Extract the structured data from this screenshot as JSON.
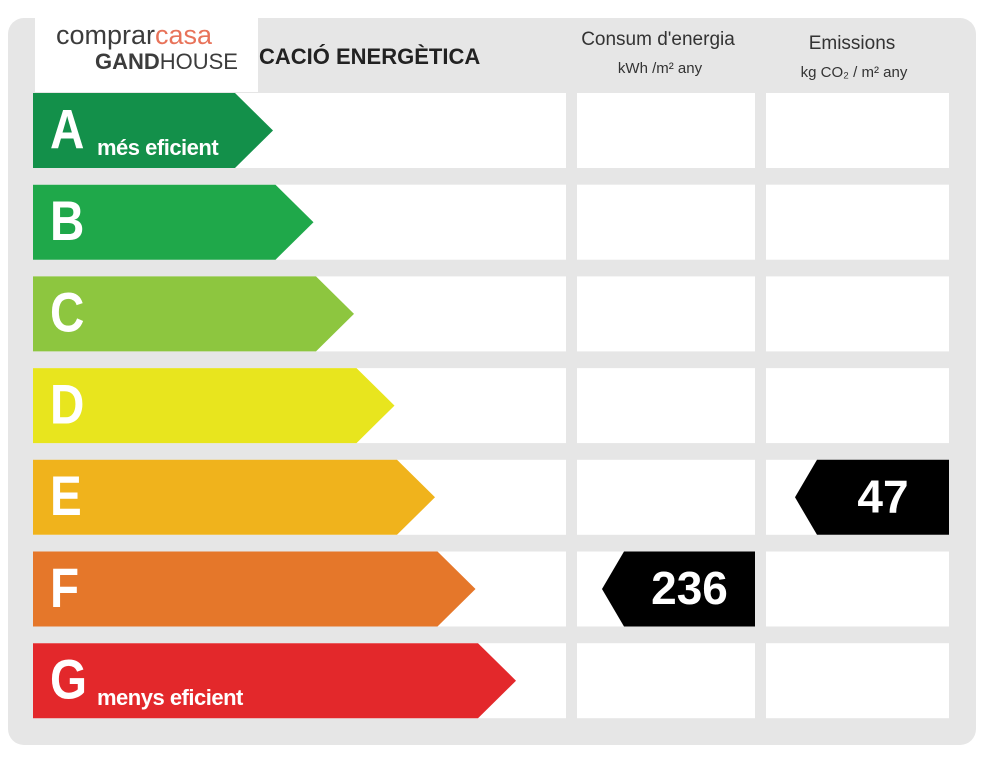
{
  "logo": {
    "comprar": "comprar",
    "casa": "casa",
    "gand": "GAND",
    "house": "HOUSE"
  },
  "title": "CACIÓ ENERGÈTICA",
  "columns": {
    "consumption": {
      "title": "Consum d'energia",
      "unit": "kWh /m²  any"
    },
    "emissions": {
      "title": "Emissions",
      "unit": "kg CO₂  / m²  any"
    }
  },
  "ratings": [
    {
      "letter": "A",
      "label": "més eficient",
      "color": "#13904a"
    },
    {
      "letter": "B",
      "color": "#1fa84a"
    },
    {
      "letter": "C",
      "color": "#8dc63f"
    },
    {
      "letter": "D",
      "color": "#e8e51e"
    },
    {
      "letter": "E",
      "color": "#f0b31c",
      "emissions": "47"
    },
    {
      "letter": "F",
      "color": "#e5772a",
      "consumption": "236"
    },
    {
      "letter": "G",
      "label": "menys eficient",
      "color": "#e3282b"
    }
  ]
}
